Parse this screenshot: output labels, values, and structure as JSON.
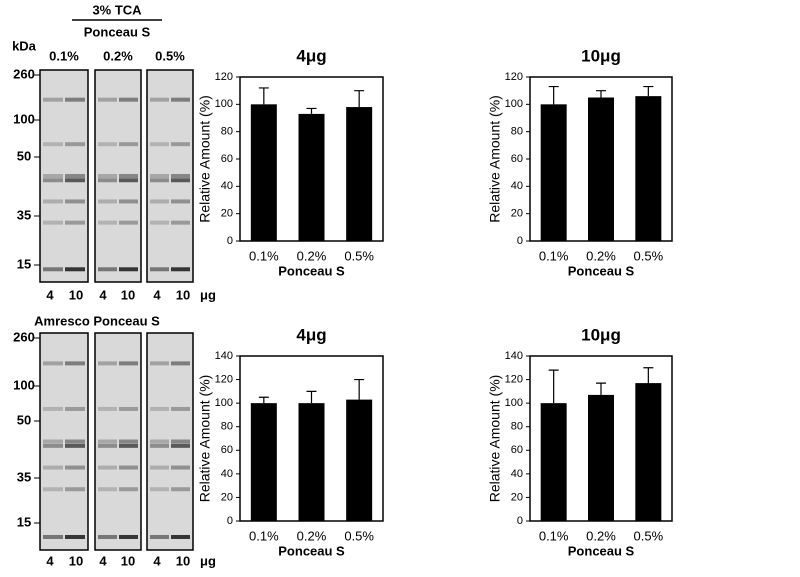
{
  "blots": [
    {
      "header": "3% TCA",
      "subheader": "Ponceau S",
      "lanes": [
        "0.1%",
        "0.2%",
        "0.5%"
      ],
      "unit_axis": "kDa",
      "markers": [
        "260",
        "100",
        "50",
        "35",
        "15"
      ],
      "loads": [
        "4",
        "10",
        "4",
        "10",
        "4",
        "10"
      ],
      "load_unit": "μg"
    },
    {
      "header": "Amresco Ponceau S",
      "markers": [
        "260",
        "100",
        "50",
        "35",
        "15"
      ],
      "loads": [
        "4",
        "10",
        "4",
        "10",
        "4",
        "10"
      ],
      "load_unit": "μg"
    }
  ],
  "chart_data": [
    {
      "type": "bar",
      "title": "4μg",
      "y_label": "Relative Amount (%)",
      "x_label": "Ponceau S",
      "categories": [
        "0.1%",
        "0.2%",
        "0.5%"
      ],
      "values": [
        100,
        93,
        98
      ],
      "errors": [
        12,
        4,
        12
      ],
      "color": "#000000",
      "ylim": [
        0,
        120
      ],
      "yticks": [
        0,
        20,
        40,
        60,
        80,
        100,
        120
      ]
    },
    {
      "type": "bar",
      "title": "10μg",
      "y_label": "Relative Amount (%)",
      "x_label": "Ponceau S",
      "categories": [
        "0.1%",
        "0.2%",
        "0.5%"
      ],
      "values": [
        100,
        105,
        106
      ],
      "errors": [
        13,
        5,
        7
      ],
      "color": "#000000",
      "ylim": [
        0,
        120
      ],
      "yticks": [
        0,
        20,
        40,
        60,
        80,
        100,
        120
      ]
    },
    {
      "type": "bar",
      "title": "4μg",
      "y_label": "Relative Amount (%)",
      "x_label": "Ponceau S",
      "categories": [
        "0.1%",
        "0.2%",
        "0.5%"
      ],
      "values": [
        100,
        100,
        103
      ],
      "errors": [
        5,
        10,
        17
      ],
      "color": "#000000",
      "ylim": [
        0,
        140
      ],
      "yticks": [
        0,
        20,
        40,
        60,
        80,
        100,
        120,
        140
      ]
    },
    {
      "type": "bar",
      "title": "10μg",
      "y_label": "Relative Amount (%)",
      "x_label": "Ponceau S",
      "categories": [
        "0.1%",
        "0.2%",
        "0.5%"
      ],
      "values": [
        100,
        107,
        117
      ],
      "errors": [
        28,
        10,
        13
      ],
      "color": "#000000",
      "ylim": [
        0,
        140
      ],
      "yticks": [
        0,
        20,
        40,
        60,
        80,
        100,
        120,
        140
      ]
    }
  ]
}
